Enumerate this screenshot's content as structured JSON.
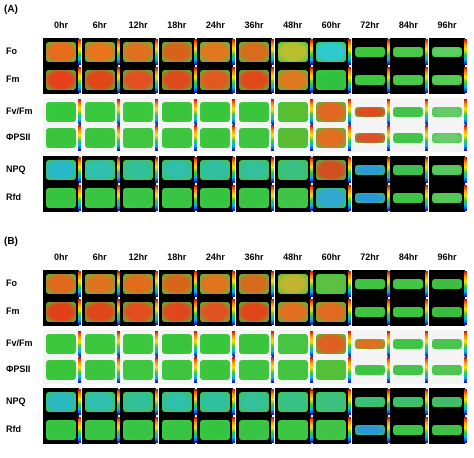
{
  "time_points": [
    "0hr",
    "6hr",
    "12hr",
    "18hr",
    "24hr",
    "36hr",
    "48hr",
    "60hr",
    "72hr",
    "84hr",
    "96hr"
  ],
  "panels": [
    {
      "label": "(A)",
      "rows": [
        {
          "label": "Fo",
          "bg": "dark",
          "leaf": [
            "#e86a1a",
            "#e8741c",
            "#e07020",
            "#d9621a",
            "#e0781e",
            "#d86c1c",
            "#b8c030",
            "#2fc9d0",
            "#3ac838",
            "#4cc848",
            "#5bd060"
          ]
        },
        {
          "label": "Fm",
          "bg": "dark",
          "leaf": [
            "#e8401c",
            "#e04818",
            "#e25020",
            "#de4a1c",
            "#e05a20",
            "#e04a1a",
            "#e07820",
            "#30c040",
            "#3cc83c",
            "#48c848",
            "#56cc56"
          ]
        },
        {
          "label": "Fv/Fm",
          "bg": "light",
          "leaf": [
            "#36c83c",
            "#38c83e",
            "#3cc83e",
            "#3ac43c",
            "#38c63c",
            "#3ac43c",
            "#58c030",
            "#e06820",
            "#e04a20",
            "#42c44a",
            "#66cc6a"
          ]
        },
        {
          "label": "ΦPSII",
          "bg": "light",
          "leaf": [
            "#3ac43a",
            "#3cc43e",
            "#40c640",
            "#3ec43e",
            "#3cc43c",
            "#3ec43e",
            "#5abc32",
            "#e07020",
            "#e05028",
            "#44c44c",
            "#6ccc6c"
          ]
        },
        {
          "label": "NPQ",
          "bg": "dark",
          "leaf": [
            "#28b8c8",
            "#2fc0b0",
            "#32c098",
            "#2ec0a8",
            "#30c0a0",
            "#34c098",
            "#3ac080",
            "#d05020",
            "#2a9ad8",
            "#3cc050",
            "#5ac860"
          ]
        },
        {
          "label": "Rfd",
          "bg": "dark",
          "leaf": [
            "#34c440",
            "#36c442",
            "#38c444",
            "#36c442",
            "#34c440",
            "#38c444",
            "#40c448",
            "#30a8d0",
            "#2a98d8",
            "#40c448",
            "#58c858"
          ]
        }
      ]
    },
    {
      "label": "(B)",
      "rows": [
        {
          "label": "Fo",
          "bg": "dark",
          "leaf": [
            "#e06a1c",
            "#e0741e",
            "#e06c1c",
            "#d8661a",
            "#e07420",
            "#d66a1c",
            "#c0b430",
            "#5cc040",
            "#40c444",
            "#42c444",
            "#3cbc40"
          ]
        },
        {
          "label": "Fm",
          "bg": "dark",
          "leaf": [
            "#e2401a",
            "#e04818",
            "#e24e1e",
            "#de481c",
            "#e0521e",
            "#e0461a",
            "#e07020",
            "#e06a20",
            "#3cc440",
            "#3cc440",
            "#38bc3c"
          ]
        },
        {
          "label": "Fv/Fm",
          "bg": "light",
          "leaf": [
            "#3ac83c",
            "#3cc83e",
            "#3cc83e",
            "#3ac43c",
            "#38c63c",
            "#3ac43c",
            "#48c444",
            "#e06020",
            "#e07020",
            "#40c448",
            "#4cc450"
          ]
        },
        {
          "label": "ΦPSII",
          "bg": "light",
          "leaf": [
            "#3ac43a",
            "#3cc43e",
            "#40c640",
            "#3ec43e",
            "#3cc43c",
            "#3ec43e",
            "#44c440",
            "#54c038",
            "#3ec444",
            "#44c44c",
            "#50c454"
          ]
        },
        {
          "label": "NPQ",
          "bg": "dark",
          "leaf": [
            "#2cb8c0",
            "#30c0b0",
            "#32c098",
            "#2ec0a8",
            "#30c0a0",
            "#34c098",
            "#38c088",
            "#3cc080",
            "#38c078",
            "#3cc070",
            "#40bc6c"
          ]
        },
        {
          "label": "Rfd",
          "bg": "dark",
          "leaf": [
            "#34c440",
            "#36c442",
            "#38c444",
            "#36c442",
            "#34c440",
            "#38c444",
            "#3cc444",
            "#40c448",
            "#2a98d8",
            "#3cc448",
            "#40c048"
          ]
        }
      ]
    }
  ]
}
